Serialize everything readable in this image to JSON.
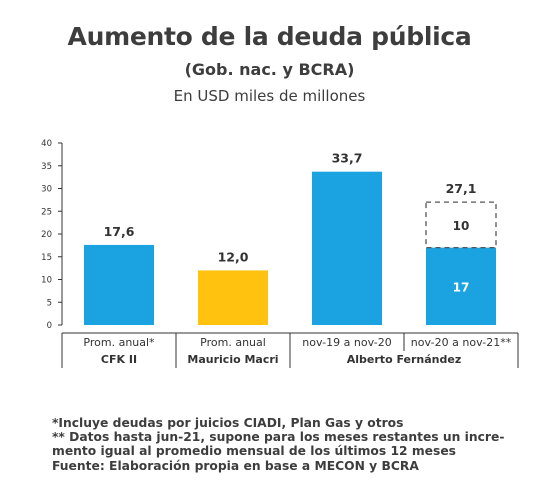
{
  "header": {
    "title": "Aumento de la deuda pública",
    "subtitle": "(Gob. nac. y BCRA)",
    "unit": "En USD miles de millones"
  },
  "colors": {
    "blue": "#1aa3e0",
    "yellow": "#ffc20e",
    "axis": "#333333",
    "dashed": "#555555"
  },
  "chart_data": {
    "type": "bar",
    "ylim": [
      0,
      40
    ],
    "yticks": [
      0,
      5,
      10,
      15,
      20,
      25,
      30,
      35,
      40
    ],
    "categories": [
      "Prom. anual*",
      "Prom. anual",
      "nov-19 a nov-20",
      "nov-20 a nov-21**"
    ],
    "groups": [
      {
        "label": "CFK II",
        "span": [
          0,
          0
        ]
      },
      {
        "label": "Mauricio Macri",
        "span": [
          1,
          1
        ]
      },
      {
        "label": "Alberto Fernández",
        "span": [
          2,
          3
        ]
      }
    ],
    "bars": [
      {
        "value": 17.6,
        "label": "17,6",
        "color": "blue"
      },
      {
        "value": 12.0,
        "label": "12,0",
        "color": "yellow"
      },
      {
        "value": 33.7,
        "label": "33,7",
        "color": "blue"
      },
      {
        "value": 17,
        "label": "17",
        "color": "blue",
        "stack": {
          "value": 10,
          "label": "10",
          "style": "dashed"
        },
        "total_label": "27,1"
      }
    ]
  },
  "notes": [
    "*Incluye deudas por juicios CIADI, Plan Gas y otros",
    "** Datos hasta jun-21, supone para los meses restantes un incre-",
    "mento igual al promedio mensual de los últimos 12 meses",
    "Fuente: Elaboración propia en base a MECON y BCRA"
  ]
}
